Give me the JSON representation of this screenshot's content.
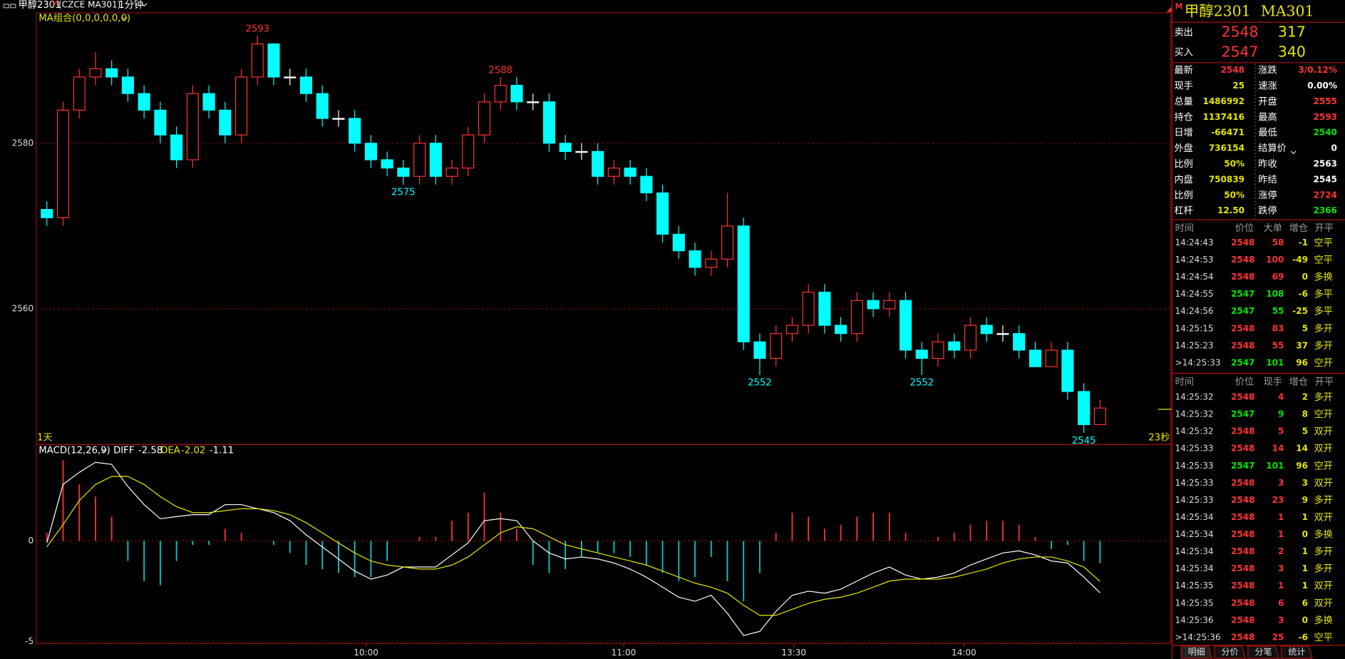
{
  "window": {
    "symbol": "甲醇2301",
    "flag": "M",
    "code": "(CZCE MA301)",
    "period": "1分钟"
  },
  "chart_data": [
    {
      "type": "candlestick",
      "title": "MA组合(0,0,0,0,0,0)",
      "period_label": "1天",
      "countdown": "23秒",
      "up_color": "#ff3232",
      "down_color": "#00ffff",
      "flat_color": "#ffffff",
      "open": [
        2572,
        2571,
        2584,
        2588,
        2589,
        2588,
        2586,
        2584,
        2581,
        2578,
        2586,
        2584,
        2581,
        2588,
        2592,
        2588,
        2588,
        2586,
        2583,
        2583,
        2580,
        2578,
        2577,
        2576,
        2580,
        2576,
        2577,
        2581,
        2585,
        2587,
        2585,
        2585,
        2580,
        2579,
        2579,
        2576,
        2577,
        2576,
        2574,
        2569,
        2567,
        2565,
        2566,
        2570,
        2556,
        2554,
        2557,
        2558,
        2562,
        2558,
        2557,
        2561,
        2560,
        2561,
        2555,
        2554,
        2556,
        2555,
        2558,
        2557,
        2557,
        2555,
        2553,
        2555,
        2550,
        2546
      ],
      "high": [
        2573,
        2585,
        2589,
        2591,
        2590,
        2589,
        2587,
        2585,
        2582,
        2587,
        2587,
        2585,
        2589,
        2593,
        2592,
        2589,
        2589,
        2587,
        2584,
        2584,
        2581,
        2579,
        2578,
        2581,
        2581,
        2578,
        2582,
        2586,
        2588,
        2588,
        2586,
        2586,
        2581,
        2580,
        2580,
        2578,
        2578,
        2577,
        2575,
        2570,
        2568,
        2567,
        2574,
        2571,
        2557,
        2558,
        2559,
        2563,
        2563,
        2559,
        2562,
        2562,
        2562,
        2562,
        2556,
        2557,
        2557,
        2559,
        2559,
        2558,
        2558,
        2556,
        2556,
        2556,
        2551,
        2549
      ],
      "low": [
        2570,
        2570,
        2583,
        2587,
        2587,
        2585,
        2583,
        2580,
        2577,
        2577,
        2583,
        2580,
        2580,
        2587,
        2587,
        2587,
        2585,
        2582,
        2582,
        2579,
        2577,
        2576,
        2575,
        2575,
        2575,
        2575,
        2576,
        2580,
        2584,
        2584,
        2584,
        2579,
        2578,
        2578,
        2575,
        2575,
        2575,
        2573,
        2568,
        2566,
        2564,
        2564,
        2565,
        2555,
        2552,
        2553,
        2556,
        2557,
        2557,
        2556,
        2556,
        2559,
        2559,
        2554,
        2552,
        2553,
        2554,
        2554,
        2556,
        2556,
        2554,
        2553,
        2553,
        2549,
        2545,
        2546
      ],
      "close": [
        2571,
        2584,
        2588,
        2589,
        2588,
        2586,
        2584,
        2581,
        2578,
        2586,
        2584,
        2581,
        2588,
        2592,
        2588,
        2588,
        2586,
        2583,
        2583,
        2580,
        2578,
        2577,
        2576,
        2580,
        2576,
        2577,
        2581,
        2585,
        2587,
        2585,
        2585,
        2580,
        2579,
        2579,
        2576,
        2577,
        2576,
        2574,
        2569,
        2567,
        2565,
        2566,
        2570,
        2556,
        2554,
        2557,
        2558,
        2562,
        2558,
        2557,
        2561,
        2560,
        2561,
        2555,
        2554,
        2556,
        2555,
        2558,
        2557,
        2557,
        2555,
        2553,
        2555,
        2550,
        2546,
        2548
      ],
      "ylim": [
        2543.6,
        2595.75
      ],
      "yticks": [
        2560,
        2580
      ],
      "xticks": [
        {
          "value": 19.7,
          "label": "10:00"
        },
        {
          "value": 35.6,
          "label": "11:00"
        },
        {
          "value": 46.1,
          "label": "13:30"
        },
        {
          "value": 56.6,
          "label": "14:00"
        }
      ],
      "annotations": [
        {
          "index": 13,
          "value": 2593,
          "color": "#ff3232",
          "position": "above"
        },
        {
          "index": 28,
          "value": 2588,
          "color": "#ff3232",
          "position": "above"
        },
        {
          "index": 22,
          "value": 2575,
          "color": "#00ffff",
          "position": "below"
        },
        {
          "index": 44,
          "value": 2552,
          "color": "#00ffff",
          "position": "below"
        },
        {
          "index": 54,
          "value": 2552,
          "color": "#00ffff",
          "position": "below"
        },
        {
          "index": 64,
          "value": 2545,
          "color": "#00ffff",
          "position": "below"
        }
      ]
    },
    {
      "type": "macd",
      "title": "MACD(12,26,9)",
      "ylim": [
        -5.1,
        4.7
      ],
      "yticks": [
        -5,
        0
      ],
      "series": [
        {
          "name": "DIFF",
          "color": "#ffffff",
          "value_label": "-2.58",
          "values": [
            -0.1,
            2.8,
            3.4,
            3.9,
            3.8,
            2.7,
            1.8,
            1.1,
            1.2,
            1.3,
            1.3,
            1.8,
            1.8,
            1.6,
            1.4,
            1.0,
            0.3,
            -0.3,
            -0.9,
            -1.5,
            -1.9,
            -1.7,
            -1.3,
            -1.3,
            -1.3,
            -0.7,
            -0.1,
            1.0,
            1.1,
            1.0,
            0.0,
            -0.6,
            -0.9,
            -0.8,
            -0.9,
            -1.1,
            -1.4,
            -1.8,
            -2.3,
            -2.8,
            -3.0,
            -2.7,
            -3.6,
            -4.7,
            -4.5,
            -3.5,
            -2.7,
            -2.5,
            -2.6,
            -2.4,
            -2.0,
            -1.6,
            -1.3,
            -1.7,
            -1.9,
            -1.8,
            -1.6,
            -1.2,
            -0.9,
            -0.6,
            -0.5,
            -0.7,
            -1.0,
            -1.1,
            -1.8,
            -2.58
          ]
        },
        {
          "name": "DEA",
          "color": "#e6e600",
          "value_label": "-2.02",
          "values": [
            -0.3,
            0.8,
            2.0,
            2.8,
            3.2,
            3.2,
            2.8,
            2.2,
            1.7,
            1.4,
            1.4,
            1.5,
            1.6,
            1.6,
            1.5,
            1.3,
            0.9,
            0.4,
            -0.1,
            -0.6,
            -1.0,
            -1.2,
            -1.3,
            -1.4,
            -1.4,
            -1.2,
            -0.8,
            -0.2,
            0.4,
            0.7,
            0.6,
            0.2,
            -0.2,
            -0.4,
            -0.6,
            -0.8,
            -1.0,
            -1.2,
            -1.5,
            -1.8,
            -2.1,
            -2.3,
            -2.6,
            -3.2,
            -3.7,
            -3.7,
            -3.4,
            -3.1,
            -2.9,
            -2.8,
            -2.6,
            -2.3,
            -2.0,
            -1.9,
            -1.9,
            -1.9,
            -1.8,
            -1.6,
            -1.4,
            -1.1,
            -0.9,
            -0.8,
            -0.8,
            -1.0,
            -1.3,
            -2.02
          ]
        }
      ],
      "histogram": {
        "value_label": "-1.11",
        "colors": [
          "#ff3232",
          "#00cccc"
        ],
        "values": [
          0.4,
          4.0,
          2.8,
          2.2,
          1.2,
          -1.0,
          -2.0,
          -2.2,
          -1.0,
          -0.2,
          -0.2,
          0.6,
          0.4,
          0.0,
          -0.2,
          -0.6,
          -1.2,
          -1.4,
          -1.6,
          -1.8,
          -1.8,
          -1.0,
          0.0,
          0.2,
          0.2,
          1.0,
          1.4,
          2.4,
          1.4,
          0.6,
          -1.2,
          -1.6,
          -1.4,
          -0.8,
          -0.6,
          -0.6,
          -0.8,
          -1.2,
          -1.6,
          -2.0,
          -1.8,
          -0.8,
          -2.0,
          -3.0,
          -1.6,
          0.4,
          1.4,
          1.2,
          0.6,
          0.8,
          1.2,
          1.4,
          1.4,
          0.4,
          0.0,
          0.2,
          0.4,
          0.8,
          1.0,
          1.0,
          0.8,
          0.2,
          -0.4,
          -0.2,
          -1.0,
          -1.11
        ]
      }
    }
  ],
  "quote_panel": {
    "flag": "M",
    "title": "甲醇2301",
    "code": "MA301",
    "sell": {
      "label": "卖出",
      "price": "2548",
      "volume": "317"
    },
    "buy": {
      "label": "买入",
      "price": "2547",
      "volume": "340"
    },
    "quotes": [
      [
        {
          "label": "最新",
          "value": "2548",
          "color": "#ff3232"
        },
        {
          "label": "涨跌",
          "value": "3/0.12%",
          "color": "#ff3232"
        }
      ],
      [
        {
          "label": "现手",
          "value": "25",
          "color": "#e6e600"
        },
        {
          "label": "速涨",
          "value": "0.00%",
          "color": "#ffffff"
        }
      ],
      [
        {
          "label": "总量",
          "value": "1486992",
          "color": "#e6e600"
        },
        {
          "label": "开盘",
          "value": "2555",
          "color": "#ff3232"
        }
      ],
      [
        {
          "label": "持仓",
          "value": "1137416",
          "color": "#e6e600"
        },
        {
          "label": "最高",
          "value": "2593",
          "color": "#ff3232"
        }
      ],
      [
        {
          "label": "日增",
          "value": "-66471",
          "color": "#e6e600"
        },
        {
          "label": "最低",
          "value": "2540",
          "color": "#00e600"
        }
      ],
      [
        {
          "label": "外盘",
          "value": "736154",
          "color": "#e6e600"
        },
        {
          "label": "结算价",
          "value": "0",
          "color": "#ffffff"
        }
      ],
      [
        {
          "label": "比例",
          "value": "50%",
          "color": "#e6e600"
        },
        {
          "label": "昨收",
          "value": "2563",
          "color": "#ffffff"
        }
      ],
      [
        {
          "label": "内盘",
          "value": "750839",
          "color": "#e6e600"
        },
        {
          "label": "昨结",
          "value": "2545",
          "color": "#ffffff"
        }
      ],
      [
        {
          "label": "比例",
          "value": "50%",
          "color": "#e6e600"
        },
        {
          "label": "涨停",
          "value": "2724",
          "color": "#ff3232"
        }
      ],
      [
        {
          "label": "杠杆",
          "value": "12.50",
          "color": "#e6e600"
        },
        {
          "label": "跌停",
          "value": "2366",
          "color": "#00e600"
        }
      ]
    ],
    "big_trades": {
      "header": [
        "时间",
        "价位",
        "大单",
        "增仓",
        "开平"
      ],
      "rows": [
        {
          "color": "#ff3232",
          "cells": [
            "14:24:43",
            "2548",
            "58",
            "-1",
            "空平"
          ]
        },
        {
          "color": "#ff3232",
          "cells": [
            "14:24:53",
            "2548",
            "100",
            "-49",
            "空平"
          ]
        },
        {
          "color": "#ff3232",
          "cells": [
            "14:24:54",
            "2548",
            "69",
            "0",
            "多换"
          ]
        },
        {
          "color": "#00e600",
          "cells": [
            "14:24:55",
            "2547",
            "108",
            "-6",
            "多平"
          ]
        },
        {
          "color": "#00e600",
          "cells": [
            "14:24:56",
            "2547",
            "55",
            "-25",
            "多平"
          ]
        },
        {
          "color": "#ff3232",
          "cells": [
            "14:25:15",
            "2548",
            "83",
            "5",
            "多开"
          ]
        },
        {
          "color": "#ff3232",
          "cells": [
            "14:25:23",
            "2548",
            "55",
            "37",
            "多开"
          ]
        },
        {
          "color": "#00e600",
          "cells": [
            ">14:25:33",
            "2547",
            "101",
            "96",
            "空开"
          ]
        }
      ]
    },
    "trades": {
      "header": [
        "时间",
        "价位",
        "现手",
        "增仓",
        "开平"
      ],
      "rows": [
        {
          "color": "#ff3232",
          "cells": [
            "14:25:32",
            "2548",
            "4",
            "2",
            "多开"
          ]
        },
        {
          "color": "#00e600",
          "cells": [
            "14:25:32",
            "2547",
            "9",
            "8",
            "空开"
          ]
        },
        {
          "color": "#ff3232",
          "cells": [
            "14:25:32",
            "2548",
            "5",
            "5",
            "双开"
          ]
        },
        {
          "color": "#ff3232",
          "cells": [
            "14:25:33",
            "2548",
            "14",
            "14",
            "双开"
          ]
        },
        {
          "color": "#00e600",
          "cells": [
            "14:25:33",
            "2547",
            "101",
            "96",
            "空开"
          ]
        },
        {
          "color": "#ff3232",
          "cells": [
            "14:25:33",
            "2548",
            "3",
            "3",
            "双开"
          ]
        },
        {
          "color": "#ff3232",
          "cells": [
            "14:25:33",
            "2548",
            "23",
            "9",
            "多开"
          ]
        },
        {
          "color": "#ff3232",
          "cells": [
            "14:25:34",
            "2548",
            "1",
            "1",
            "双开"
          ]
        },
        {
          "color": "#ff3232",
          "cells": [
            "14:25:34",
            "2548",
            "1",
            "0",
            "多换"
          ]
        },
        {
          "color": "#ff3232",
          "cells": [
            "14:25:34",
            "2548",
            "2",
            "1",
            "多开"
          ]
        },
        {
          "color": "#ff3232",
          "cells": [
            "14:25:34",
            "2548",
            "3",
            "1",
            "多开"
          ]
        },
        {
          "color": "#ff3232",
          "cells": [
            "14:25:35",
            "2548",
            "1",
            "1",
            "双开"
          ]
        },
        {
          "color": "#ff3232",
          "cells": [
            "14:25:35",
            "2548",
            "6",
            "6",
            "双开"
          ]
        },
        {
          "color": "#ff3232",
          "cells": [
            "14:25:36",
            "2548",
            "3",
            "0",
            "多换"
          ]
        },
        {
          "color": "#ff3232",
          "cells": [
            ">14:25:36",
            "2548",
            "25",
            "-6",
            "空平"
          ]
        }
      ]
    },
    "tabs": [
      "明细",
      "分价",
      "分笔",
      "统计"
    ]
  }
}
